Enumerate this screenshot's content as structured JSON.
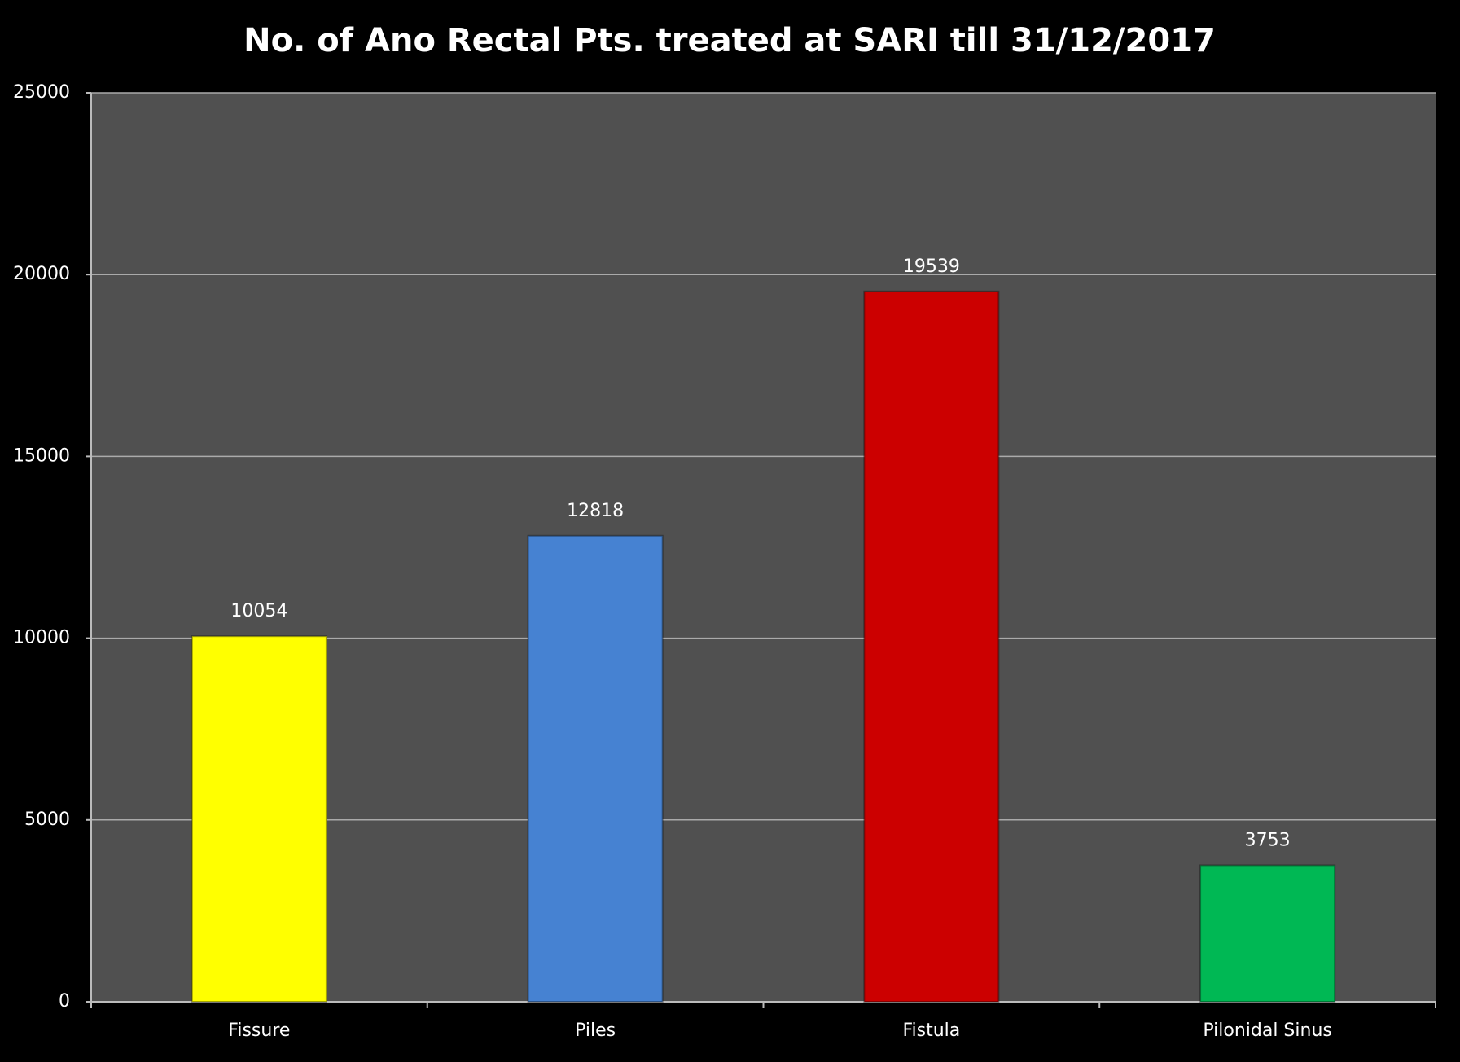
{
  "chart_data": {
    "type": "bar",
    "title": "No. of Ano Rectal Pts. treated at SARI till 31/12/2017",
    "categories": [
      "Fissure",
      "Piles",
      "Fistula",
      "Pilonidal Sinus"
    ],
    "values": [
      10054,
      12818,
      19539,
      3753
    ],
    "colors": [
      "#ffff00",
      "#4682d2",
      "#cc0000",
      "#00b854"
    ],
    "ylim": [
      0,
      25000
    ],
    "yticks": [
      0,
      5000,
      10000,
      15000,
      20000,
      25000
    ],
    "grid": true
  }
}
